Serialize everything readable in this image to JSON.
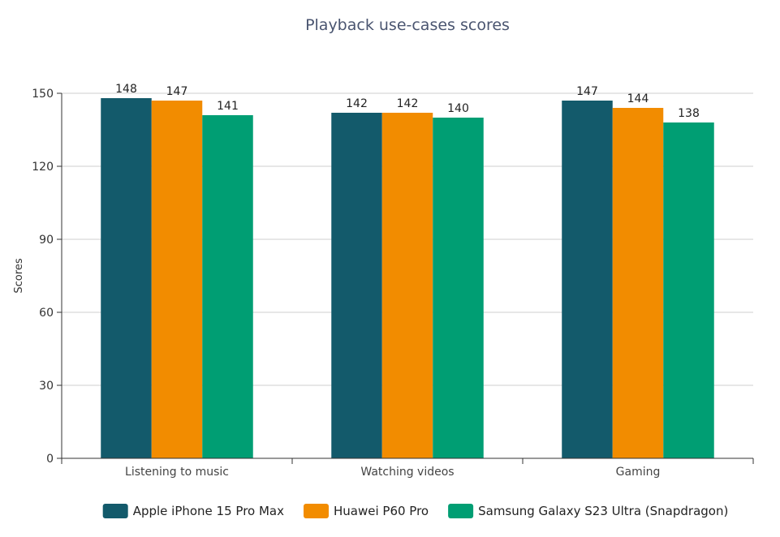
{
  "chart_data": {
    "type": "bar",
    "title": "Playback use-cases scores",
    "xlabel": "",
    "ylabel": "Scores",
    "categories": [
      "Listening to music",
      "Watching videos",
      "Gaming"
    ],
    "series": [
      {
        "name": "Apple iPhone 15 Pro Max",
        "color": "#135a6b",
        "values": [
          148,
          142,
          147
        ]
      },
      {
        "name": "Huawei P60 Pro",
        "color": "#f28c00",
        "values": [
          147,
          142,
          144
        ]
      },
      {
        "name": "Samsung Galaxy S23 Ultra (Snapdragon)",
        "color": "#009e73",
        "values": [
          141,
          140,
          138
        ]
      }
    ],
    "ylim": [
      0,
      150
    ],
    "yticks": [
      0,
      30,
      60,
      90,
      120,
      150
    ],
    "grid": true,
    "legend": "bottom-center"
  }
}
